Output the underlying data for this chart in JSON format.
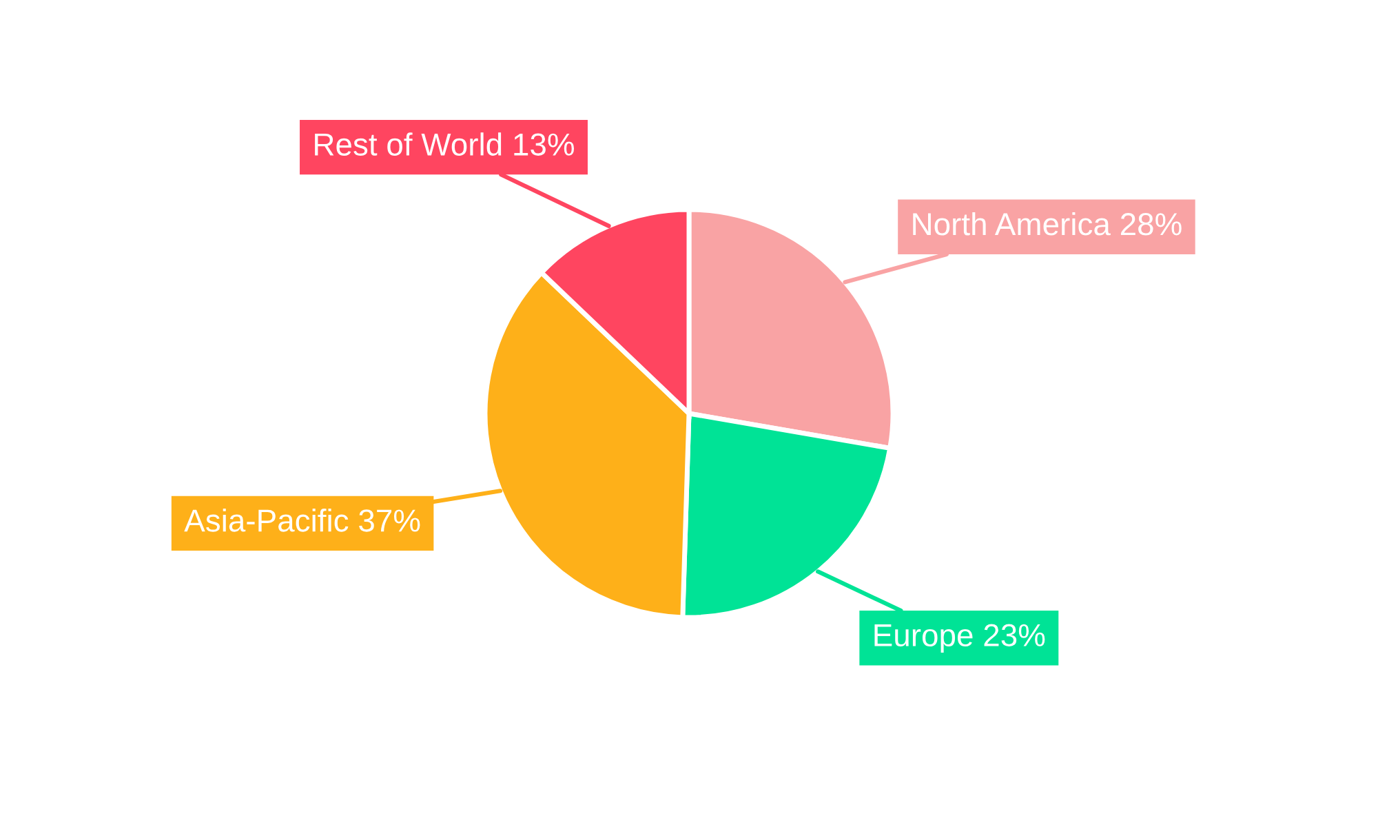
{
  "chart_data": {
    "type": "pie",
    "categories": [
      "North America",
      "Europe",
      "Asia-Pacific",
      "Rest of World"
    ],
    "values": [
      28,
      23,
      37,
      13
    ],
    "colors": [
      "#f9a3a4",
      "#00e396",
      "#feb019",
      "#ff4560"
    ],
    "value_labels": [
      "28%",
      "23%",
      "37%",
      "13%"
    ]
  }
}
